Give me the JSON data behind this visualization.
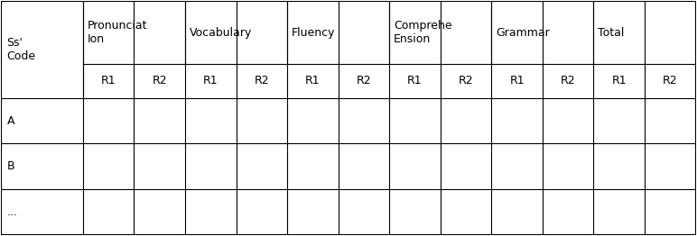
{
  "col_groups": [
    {
      "label": "Ss'\nCode",
      "span": 1
    },
    {
      "label": "Pronunciat\nIon",
      "span": 2
    },
    {
      "label": "Vocabulary",
      "span": 2
    },
    {
      "label": "Fluency",
      "span": 2
    },
    {
      "label": "Comprehe\nEnsion",
      "span": 2
    },
    {
      "label": "Grammar",
      "span": 2
    },
    {
      "label": "Total",
      "span": 2
    }
  ],
  "sub_headers": [
    "",
    "R1",
    "R2",
    "R1",
    "R2",
    "R1",
    "R2",
    "R1",
    "R2",
    "R1",
    "R2",
    "R1",
    "R2"
  ],
  "row_labels": [
    "A",
    "B",
    "..."
  ],
  "background_color": "#ffffff",
  "line_color": "#000000",
  "header_font_size": 9,
  "col_widths_raw": [
    1.6,
    1.0,
    1.0,
    1.0,
    1.0,
    1.0,
    1.0,
    1.0,
    1.0,
    1.0,
    1.0,
    1.0,
    1.0
  ],
  "row_heights_raw": [
    2.2,
    1.2,
    1.6,
    1.6,
    1.6
  ]
}
